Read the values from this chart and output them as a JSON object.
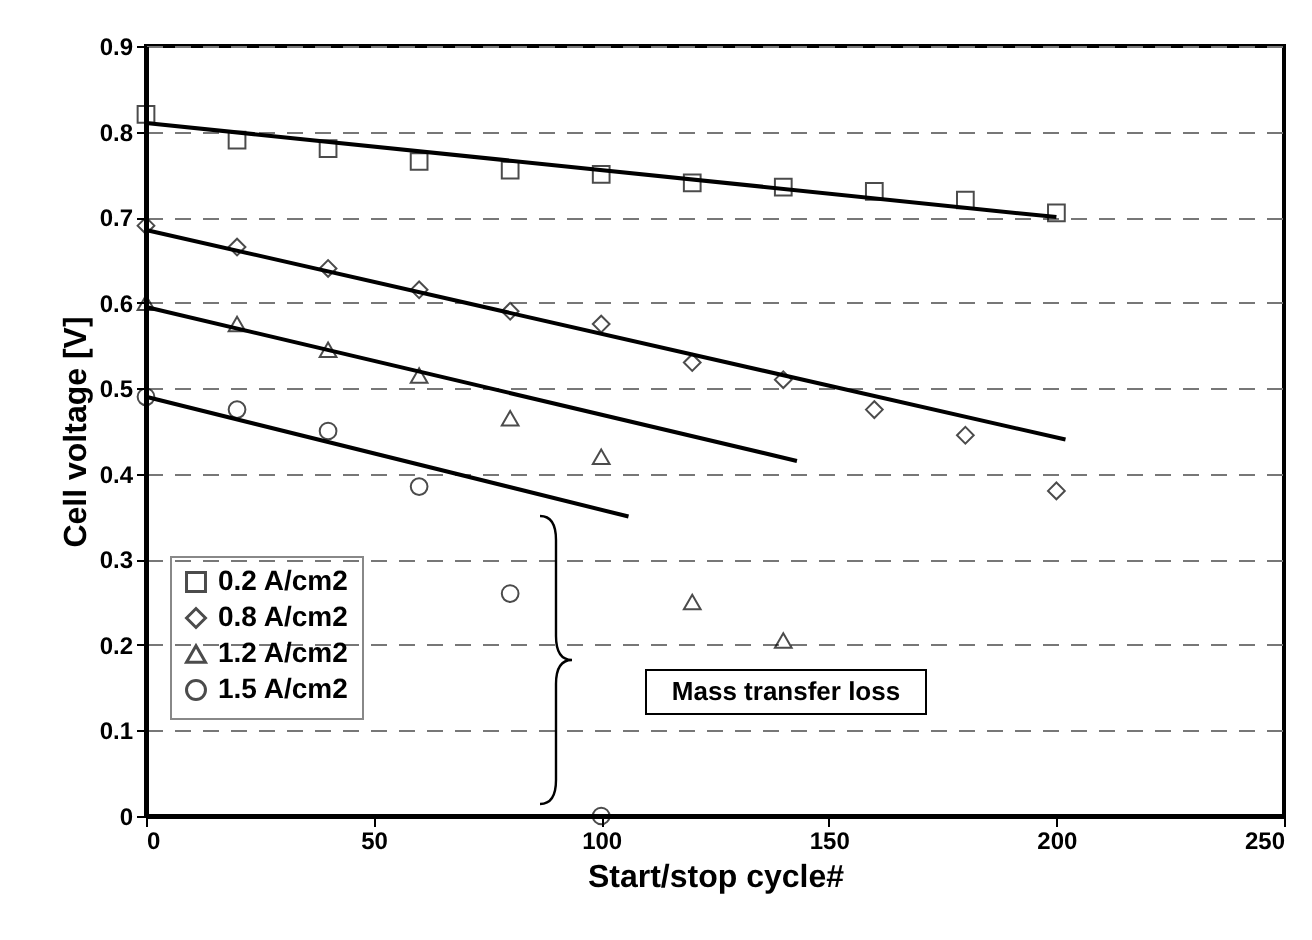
{
  "chart_data": {
    "type": "scatter",
    "xlabel": "Start/stop cycle#",
    "ylabel": "Cell voltage [V]",
    "x": [
      0,
      20,
      40,
      60,
      80,
      100,
      120,
      140,
      160,
      180,
      200
    ],
    "series": [
      {
        "name": "0.2 A/cm2",
        "color": "#000000",
        "marker": "square",
        "values": [
          0.82,
          0.79,
          0.78,
          0.765,
          0.755,
          0.75,
          0.74,
          0.735,
          0.73,
          0.72,
          0.705
        ]
      },
      {
        "name": "0.8 A/cm2",
        "color": "#000000",
        "marker": "diamond",
        "values": [
          0.69,
          0.665,
          0.64,
          0.615,
          0.59,
          0.575,
          0.53,
          0.51,
          0.475,
          0.445,
          0.38
        ]
      },
      {
        "name": "1.2 A/cm2",
        "color": "#000000",
        "marker": "triangle",
        "x": [
          0,
          20,
          40,
          60,
          80,
          100,
          120,
          140
        ],
        "values": [
          0.6,
          0.575,
          0.545,
          0.515,
          0.465,
          0.42,
          0.25,
          0.205
        ]
      },
      {
        "name": "1.5 A/cm2",
        "color": "#000000",
        "marker": "circle",
        "x": [
          0,
          20,
          40,
          60,
          80,
          100
        ],
        "values": [
          0.49,
          0.475,
          0.45,
          0.385,
          0.26,
          0
        ]
      },
      {
        "type": "line",
        "color": "#000000",
        "marker": "none",
        "x": [
          0,
          200
        ],
        "values": [
          0.81,
          0.7
        ]
      },
      {
        "type": "line",
        "color": "#000000",
        "marker": "none",
        "x": [
          0,
          202
        ],
        "values": [
          0.685,
          0.44
        ]
      },
      {
        "type": "line",
        "color": "#000000",
        "marker": "none",
        "x": [
          0,
          143
        ],
        "values": [
          0.595,
          0.415
        ]
      },
      {
        "type": "line",
        "color": "#000000",
        "marker": "none",
        "x": [
          0,
          106
        ],
        "values": [
          0.49,
          0.35
        ]
      }
    ],
    "annotations": [
      "Mass transfer loss"
    ],
    "xlim": [
      0,
      250
    ],
    "xticks": [
      0,
      50,
      100,
      150,
      200,
      250
    ],
    "ylim": [
      0,
      0.9
    ],
    "yticks": [
      0,
      0.1,
      0.2,
      0.3,
      0.4,
      0.5,
      0.6,
      0.7,
      0.8,
      0.9
    ],
    "grid": "y",
    "legend": "bottom left"
  }
}
